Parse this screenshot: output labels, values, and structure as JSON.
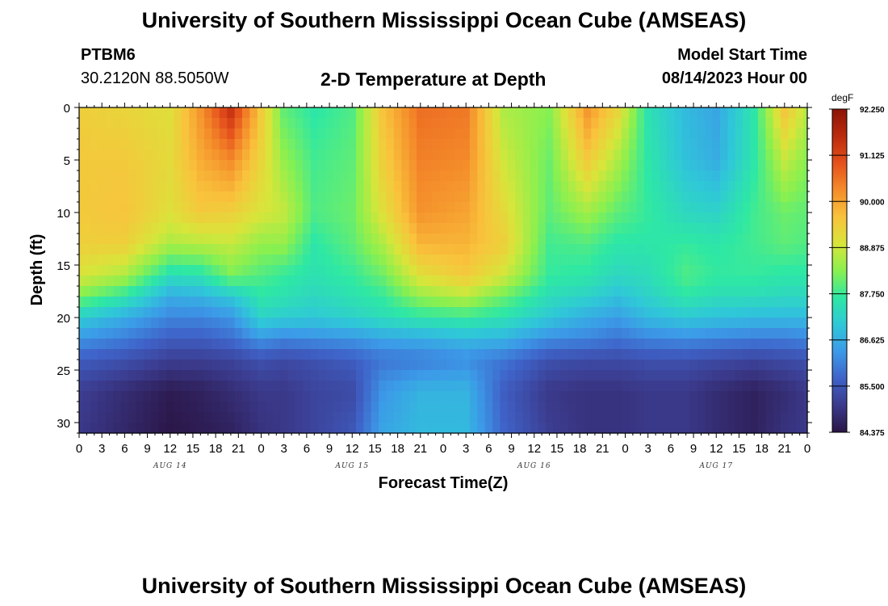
{
  "header": {
    "title": "University of Southern Mississippi Ocean Cube (AMSEAS)",
    "station": "PTBM6",
    "coords": "30.2120N  88.5050W",
    "plot_title": "2-D Temperature at Depth",
    "model_start_label": "Model Start Time",
    "model_start_value": "08/14/2023 Hour 00"
  },
  "footer": {
    "title": "University of Southern Mississippi Ocean Cube (AMSEAS)"
  },
  "chart_data": {
    "type": "heatmap",
    "title": "2-D Temperature at Depth",
    "xlabel": "Forecast Time(Z)",
    "ylabel": "Depth (ft)",
    "x_range_hours": [
      0,
      96
    ],
    "y_range_ft": [
      0,
      31
    ],
    "y_ticks": [
      0,
      5,
      10,
      15,
      20,
      25,
      30
    ],
    "x_ticks": [
      "0",
      "3",
      "6",
      "9",
      "12",
      "15",
      "18",
      "21",
      "0",
      "3",
      "6",
      "9",
      "12",
      "15",
      "18",
      "21",
      "0",
      "3",
      "6",
      "9",
      "12",
      "15",
      "18",
      "21",
      "0",
      "3",
      "6",
      "9",
      "12",
      "15",
      "18",
      "21",
      "0"
    ],
    "x_dates": [
      "AUG 14",
      "AUG 15",
      "AUG 16",
      "AUG 17"
    ],
    "colorbar": {
      "unit": "degF",
      "min": 84.375,
      "max": 92.25,
      "labels": [
        "92.250",
        "91.125",
        "90.000",
        "88.875",
        "87.750",
        "86.625",
        "85.500",
        "84.375"
      ],
      "colors": [
        "#2a1545",
        "#3b3a8c",
        "#3f63c9",
        "#3c9ae8",
        "#2fc8d8",
        "#2ee8a4",
        "#8af04f",
        "#d8e53a",
        "#f9c33c",
        "#f48c2a",
        "#e5501c",
        "#bb2a0d",
        "#8b1406"
      ]
    },
    "profile_depths_ft": [
      0,
      5,
      10,
      13,
      16,
      18,
      20,
      22,
      24,
      27,
      31
    ],
    "profiles": [
      {
        "hour": 0,
        "values": [
          89.4,
          89.5,
          89.5,
          89.4,
          89.0,
          88.2,
          87.1,
          86.3,
          85.6,
          85.1,
          85.0
        ]
      },
      {
        "hour": 6,
        "values": [
          89.3,
          89.5,
          89.6,
          89.4,
          88.6,
          87.6,
          86.6,
          86.0,
          85.4,
          84.8,
          84.7
        ]
      },
      {
        "hour": 12,
        "values": [
          89.1,
          89.2,
          89.1,
          88.6,
          87.4,
          86.6,
          86.1,
          85.6,
          85.1,
          84.5,
          84.4
        ]
      },
      {
        "hour": 16,
        "values": [
          90.2,
          89.9,
          89.5,
          88.7,
          87.5,
          86.7,
          86.1,
          85.6,
          85.1,
          84.6,
          84.5
        ]
      },
      {
        "hour": 20,
        "values": [
          91.5,
          90.3,
          89.4,
          88.8,
          88.2,
          87.0,
          86.3,
          85.8,
          85.2,
          84.8,
          84.6
        ]
      },
      {
        "hour": 24,
        "values": [
          89.5,
          89.3,
          89.0,
          88.4,
          87.9,
          87.6,
          87.2,
          86.3,
          85.4,
          85.0,
          84.9
        ]
      },
      {
        "hour": 27,
        "values": [
          88.0,
          88.4,
          88.8,
          88.4,
          87.7,
          87.5,
          87.1,
          86.1,
          85.3,
          85.0,
          85.0
        ]
      },
      {
        "hour": 31,
        "values": [
          87.6,
          87.8,
          87.9,
          87.6,
          87.5,
          87.3,
          87.0,
          86.2,
          85.4,
          85.2,
          85.2
        ]
      },
      {
        "hour": 36,
        "values": [
          87.9,
          88.0,
          88.1,
          88.0,
          87.7,
          87.5,
          87.2,
          86.3,
          85.6,
          85.3,
          85.5
        ]
      },
      {
        "hour": 40,
        "values": [
          89.6,
          89.4,
          89.1,
          88.6,
          88.1,
          87.7,
          87.4,
          86.5,
          85.9,
          86.3,
          86.5
        ]
      },
      {
        "hour": 45,
        "values": [
          90.6,
          90.4,
          90.2,
          89.8,
          89.1,
          88.4,
          87.6,
          86.6,
          86.0,
          86.7,
          86.8
        ]
      },
      {
        "hour": 51,
        "values": [
          90.5,
          90.3,
          90.0,
          89.8,
          89.5,
          88.7,
          87.7,
          86.8,
          86.2,
          86.7,
          86.8
        ]
      },
      {
        "hour": 56,
        "values": [
          88.6,
          88.9,
          89.2,
          89.4,
          88.9,
          88.1,
          87.5,
          86.7,
          85.9,
          85.6,
          85.7
        ]
      },
      {
        "hour": 62,
        "values": [
          88.3,
          88.1,
          88.0,
          87.8,
          87.7,
          87.4,
          87.0,
          86.2,
          85.4,
          85.0,
          85.1
        ]
      },
      {
        "hour": 67,
        "values": [
          90.2,
          89.5,
          88.5,
          87.9,
          87.6,
          87.2,
          86.6,
          86.1,
          85.3,
          84.9,
          84.9
        ]
      },
      {
        "hour": 71,
        "values": [
          89.3,
          88.6,
          88.0,
          87.6,
          87.3,
          86.9,
          86.4,
          85.9,
          85.3,
          84.9,
          84.9
        ]
      },
      {
        "hour": 75,
        "values": [
          87.5,
          87.6,
          87.7,
          87.6,
          87.4,
          87.2,
          86.8,
          86.1,
          85.4,
          85.0,
          85.0
        ]
      },
      {
        "hour": 80,
        "values": [
          86.8,
          86.9,
          87.3,
          87.7,
          87.9,
          87.6,
          87.0,
          86.2,
          85.4,
          85.0,
          85.0
        ]
      },
      {
        "hour": 84,
        "values": [
          86.5,
          86.6,
          87.2,
          87.6,
          87.7,
          87.4,
          86.9,
          86.1,
          85.3,
          84.8,
          84.8
        ]
      },
      {
        "hour": 89,
        "values": [
          87.6,
          87.6,
          87.8,
          87.8,
          87.7,
          87.4,
          86.8,
          86.0,
          85.2,
          84.6,
          84.6
        ]
      },
      {
        "hour": 93,
        "values": [
          89.6,
          88.8,
          88.1,
          88.0,
          87.6,
          87.3,
          86.8,
          86.0,
          85.3,
          84.8,
          84.9
        ]
      },
      {
        "hour": 96,
        "values": [
          88.7,
          88.3,
          88.0,
          87.9,
          87.6,
          87.3,
          86.8,
          86.1,
          85.4,
          85.0,
          85.0
        ]
      }
    ]
  }
}
